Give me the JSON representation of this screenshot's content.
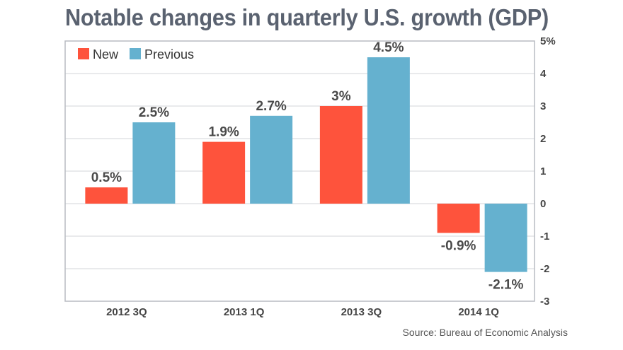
{
  "chart_data": {
    "type": "bar",
    "title": "Notable changes in quarterly U.S. growth (GDP)",
    "categories": [
      "2012 3Q",
      "2013 1Q",
      "2013 3Q",
      "2014 1Q"
    ],
    "series": [
      {
        "name": "New",
        "color": "#fe533c",
        "values": [
          0.5,
          1.9,
          3.0,
          -0.9
        ],
        "labels": [
          "0.5%",
          "1.9%",
          "3%",
          "-0.9%"
        ]
      },
      {
        "name": "Previous",
        "color": "#65b1cf",
        "values": [
          2.5,
          2.7,
          4.5,
          -2.1
        ],
        "labels": [
          "2.5%",
          "2.7%",
          "4.5%",
          "-2.1%"
        ]
      }
    ],
    "xlabel": "",
    "ylabel": "",
    "ylim": [
      -3,
      5
    ],
    "yticks": [
      5,
      4,
      3,
      2,
      1,
      0,
      -1,
      -2,
      -3
    ],
    "ytick_labels": [
      "5%",
      "4",
      "3",
      "2",
      "1",
      "0",
      "-1",
      "-2",
      "-3"
    ],
    "y_axis_side": "right",
    "grid": true,
    "legend": {
      "position": "top-left",
      "entries": [
        "New",
        "Previous"
      ]
    },
    "source": "Source: Bureau of Economic Analysis"
  }
}
